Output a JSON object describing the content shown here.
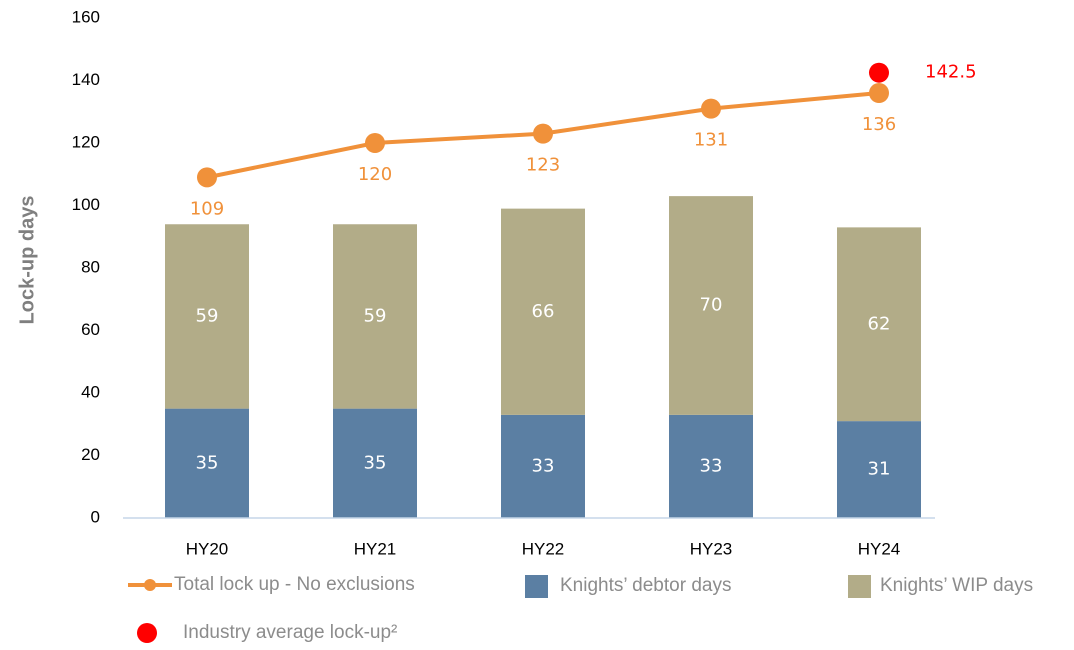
{
  "chart_data": {
    "type": "combo",
    "y_label": "Lock-up days",
    "categories": [
      "HY20",
      "HY21",
      "HY22",
      "HY23",
      "HY24"
    ],
    "ylim": [
      0,
      160
    ],
    "yticks": [
      0,
      20,
      40,
      60,
      80,
      100,
      120,
      140,
      160
    ],
    "grid": false,
    "legend": "bottom",
    "series": [
      {
        "name": "Total lock up - No exclusions",
        "type": "line",
        "color": "#f0913a",
        "values": [
          109,
          120,
          123,
          131,
          136
        ]
      },
      {
        "name": "Knights’ debtor days",
        "type": "bar",
        "color": "#5b7fa3",
        "values": [
          35,
          35,
          33,
          33,
          31
        ]
      },
      {
        "name": "Knights’ WIP days",
        "type": "bar",
        "color": "#b2ac88",
        "values": [
          59,
          59,
          66,
          70,
          62
        ]
      },
      {
        "name": "Industry average lock-up²",
        "type": "scatter",
        "color": "#ff0000",
        "values": [
          null,
          null,
          null,
          null,
          142.5
        ]
      }
    ]
  }
}
